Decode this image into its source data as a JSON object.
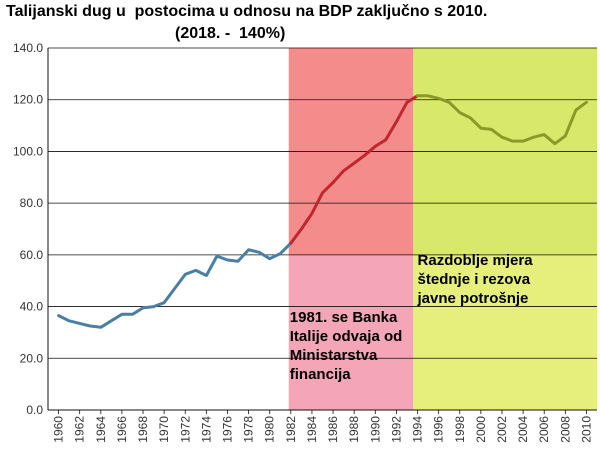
{
  "chart_data": {
    "type": "line",
    "title": [
      "Talijanski dug u  postocima u odnosu na BDP zaključno s 2010.",
      "(2018. -  140%)"
    ],
    "xlabel": "",
    "ylabel": "",
    "xlim": [
      1959,
      2011
    ],
    "ylim": [
      0,
      140
    ],
    "grid": "horizontal",
    "y_ticks": [
      "0.0",
      "20.0",
      "40.0",
      "60.0",
      "80.0",
      "100.0",
      "120.0",
      "140.0"
    ],
    "x_ticks": [
      "1960",
      "1962",
      "1964",
      "1966",
      "1968",
      "1970",
      "1972",
      "1974",
      "1976",
      "1978",
      "1980",
      "1982",
      "1984",
      "1986",
      "1988",
      "1990",
      "1992",
      "1994",
      "1996",
      "1998",
      "2000",
      "2002",
      "2004",
      "2006",
      "2008",
      "2010"
    ],
    "regions": [
      {
        "from": 1981.8,
        "to": 1993.6,
        "color": "#f4a6b8",
        "top_color": "#f48c8c"
      },
      {
        "from": 1993.6,
        "to": 2011,
        "color": "#e6ee7c",
        "top_color": "#d8e86a"
      }
    ],
    "series": [
      {
        "color": "#4a7fa5",
        "x": [
          1960,
          1961,
          1962,
          1963,
          1964,
          1965,
          1966,
          1967,
          1968,
          1969,
          1970,
          1971,
          1972,
          1973,
          1974,
          1975,
          1976,
          1977,
          1978,
          1979,
          1980,
          1981,
          1982
        ],
        "y": [
          36.5,
          34.5,
          33.5,
          32.5,
          32.0,
          34.5,
          37.0,
          37.0,
          39.5,
          40.0,
          41.5,
          47.0,
          52.5,
          54.0,
          52.0,
          59.5,
          58.0,
          57.5,
          62.0,
          61.0,
          58.5,
          60.5,
          64.5
        ]
      },
      {
        "color": "#c0272d",
        "x": [
          1982,
          1983,
          1984,
          1985,
          1986,
          1987,
          1988,
          1989,
          1990,
          1991,
          1992,
          1993,
          1994
        ],
        "y": [
          64.5,
          70.0,
          76.0,
          84.0,
          88.0,
          92.5,
          95.5,
          98.5,
          102.0,
          104.5,
          111.5,
          119.0,
          121.5
        ]
      },
      {
        "color": "#8a9a2a",
        "x": [
          1994,
          1995,
          1996,
          1997,
          1998,
          1999,
          2000,
          2001,
          2002,
          2003,
          2004,
          2005,
          2006,
          2007,
          2008,
          2009,
          2010
        ],
        "y": [
          121.5,
          121.5,
          120.5,
          119.0,
          115.0,
          113.0,
          109.0,
          108.5,
          105.5,
          104.0,
          104.0,
          105.5,
          106.5,
          103.0,
          106.0,
          116.0,
          119.0
        ]
      }
    ],
    "annotations": [
      {
        "lines": [
          "1981. se Banka",
          " Italije odvaja od",
          "Ministarstva",
          "financija"
        ],
        "anchor_x": 1981.9,
        "anchor_y": 34
      },
      {
        "lines": [
          "Razdoblje mjera",
          "štednje i rezova",
          "javne potrošnje"
        ],
        "anchor_x": 1994.0,
        "anchor_y": 56
      }
    ]
  }
}
